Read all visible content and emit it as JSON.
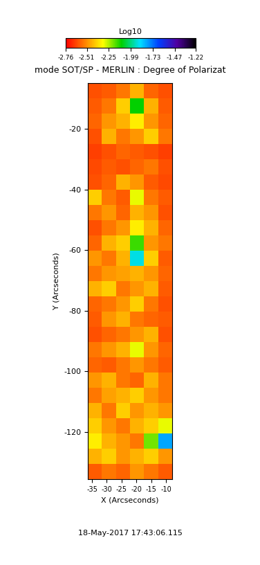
{
  "chart_data": {
    "type": "heatmap",
    "title": "mode SOT/SP - MERLIN : Degree of Polarizat",
    "x_label": "X (Arcseconds)",
    "y_label": "Y (Arcseconds)",
    "date": "18-May-2017 17:43:06.115",
    "xlim": [
      -36.4,
      -7.9
    ],
    "xticks": [
      -35,
      -30,
      -25,
      -20,
      -15,
      -10
    ],
    "ylim": [
      -135.5,
      -4.9
    ],
    "yticks": [
      -120,
      -100,
      -80,
      -60,
      -40,
      -20
    ],
    "colorbar_label": "Log10",
    "colorbar_range": [
      -2.76,
      -1.22
    ],
    "colorbar_ticks": [
      -2.76,
      -2.51,
      -2.25,
      -1.99,
      -1.73,
      -1.47,
      -1.22
    ],
    "cells": [
      [
        -2.62,
        -2.6,
        -2.55,
        -2.45,
        -2.58,
        -2.62
      ],
      [
        -2.6,
        -2.55,
        -2.4,
        -2.1,
        -2.45,
        -2.6
      ],
      [
        -2.58,
        -2.5,
        -2.45,
        -2.35,
        -2.5,
        -2.58
      ],
      [
        -2.62,
        -2.45,
        -2.55,
        -2.5,
        -2.4,
        -2.55
      ],
      [
        -2.65,
        -2.62,
        -2.58,
        -2.6,
        -2.62,
        -2.65
      ],
      [
        -2.63,
        -2.6,
        -2.62,
        -2.58,
        -2.55,
        -2.62
      ],
      [
        -2.62,
        -2.58,
        -2.45,
        -2.5,
        -2.6,
        -2.63
      ],
      [
        -2.4,
        -2.55,
        -2.6,
        -2.3,
        -2.55,
        -2.6
      ],
      [
        -2.55,
        -2.5,
        -2.58,
        -2.45,
        -2.5,
        -2.62
      ],
      [
        -2.62,
        -2.55,
        -2.5,
        -2.35,
        -2.45,
        -2.58
      ],
      [
        -2.58,
        -2.45,
        -2.4,
        -2.15,
        -2.5,
        -2.55
      ],
      [
        -2.5,
        -2.55,
        -2.45,
        -1.9,
        -2.4,
        -2.6
      ],
      [
        -2.55,
        -2.5,
        -2.48,
        -2.45,
        -2.5,
        -2.58
      ],
      [
        -2.45,
        -2.4,
        -2.55,
        -2.5,
        -2.45,
        -2.6
      ],
      [
        -2.58,
        -2.55,
        -2.5,
        -2.4,
        -2.55,
        -2.62
      ],
      [
        -2.6,
        -2.5,
        -2.45,
        -2.55,
        -2.58,
        -2.6
      ],
      [
        -2.62,
        -2.58,
        -2.55,
        -2.5,
        -2.45,
        -2.62
      ],
      [
        -2.55,
        -2.5,
        -2.45,
        -2.3,
        -2.5,
        -2.58
      ],
      [
        -2.58,
        -2.6,
        -2.55,
        -2.5,
        -2.55,
        -2.6
      ],
      [
        -2.5,
        -2.45,
        -2.55,
        -2.58,
        -2.45,
        -2.55
      ],
      [
        -2.55,
        -2.48,
        -2.45,
        -2.4,
        -2.5,
        -2.55
      ],
      [
        -2.45,
        -2.55,
        -2.4,
        -2.5,
        -2.45,
        -2.5
      ],
      [
        -2.4,
        -2.5,
        -2.55,
        -2.45,
        -2.4,
        -2.3
      ],
      [
        -2.35,
        -2.45,
        -2.5,
        -2.55,
        -2.2,
        -1.8
      ],
      [
        -2.45,
        -2.4,
        -2.5,
        -2.45,
        -2.4,
        -2.5
      ],
      [
        -2.6,
        -2.55,
        -2.58,
        -2.5,
        -2.55,
        -2.6
      ]
    ]
  }
}
